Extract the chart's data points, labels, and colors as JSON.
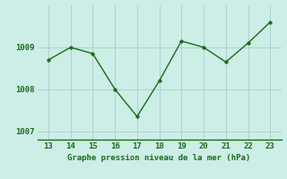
{
  "x": [
    13,
    14,
    15,
    16,
    17,
    18,
    19,
    20,
    21,
    22,
    23
  ],
  "y": [
    1008.7,
    1009.0,
    1008.85,
    1008.0,
    1007.35,
    1008.2,
    1009.15,
    1009.0,
    1008.65,
    1009.1,
    1009.6
  ],
  "line_color": "#1a6b1a",
  "marker_color": "#1a6b1a",
  "bg_color": "#cceee6",
  "grid_color": "#aad4cc",
  "xlabel": "Graphe pression niveau de la mer (hPa)",
  "xlabel_color": "#1a6b1a",
  "tick_color": "#1a6b1a",
  "border_color": "#1a6b1a",
  "ylim": [
    1006.8,
    1010.0
  ],
  "yticks": [
    1007,
    1008,
    1009
  ],
  "xlim": [
    12.5,
    23.5
  ],
  "xticks": [
    13,
    14,
    15,
    16,
    17,
    18,
    19,
    20,
    21,
    22,
    23
  ]
}
